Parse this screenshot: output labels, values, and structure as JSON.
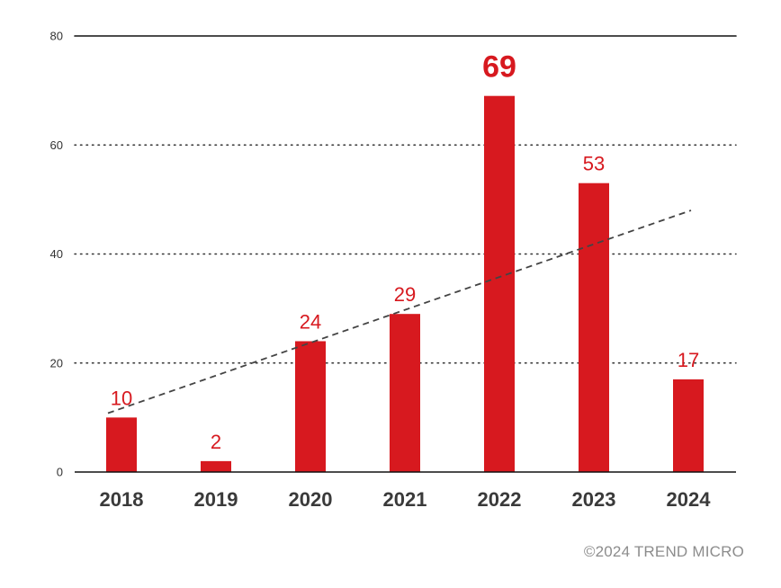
{
  "chart_data": {
    "type": "bar",
    "categories": [
      "2018",
      "2019",
      "2020",
      "2021",
      "2022",
      "2023",
      "2024"
    ],
    "values": [
      10,
      2,
      24,
      29,
      69,
      53,
      17
    ],
    "data_labels": [
      "10",
      "2",
      "24",
      "29",
      "69",
      "53",
      "17"
    ],
    "highlight_index": 4,
    "yticks": [
      "0",
      "20",
      "40",
      "60",
      "80"
    ],
    "ylim": [
      0,
      80
    ],
    "grid": "dotted horizontal",
    "trendline": {
      "style": "dashed",
      "start_value": 10.8,
      "end_value": 48.0
    },
    "colors": {
      "bar": "#d7191f",
      "label": "#d7191f",
      "axis": "#111111",
      "trend": "#444444",
      "tick": "#333333"
    }
  },
  "footer": {
    "copyright": "©2024 TREND MICRO"
  }
}
